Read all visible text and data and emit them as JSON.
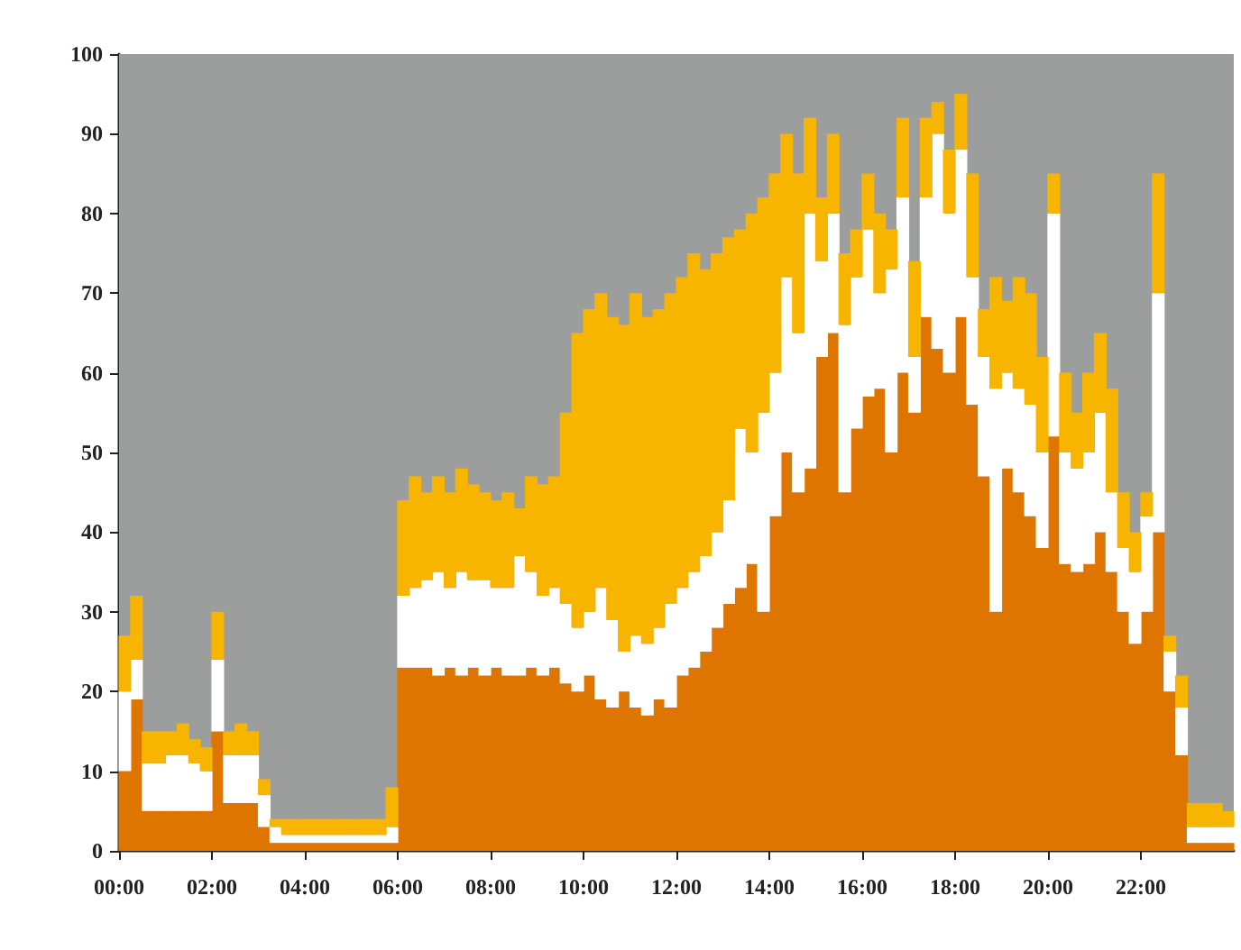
{
  "chart_data": {
    "type": "bar",
    "stacked": true,
    "x": [
      0.125,
      0.375,
      0.625,
      0.875,
      1.125,
      1.375,
      1.625,
      1.875,
      2.125,
      2.375,
      2.625,
      2.875,
      3.125,
      3.375,
      3.625,
      3.875,
      4.125,
      4.375,
      4.625,
      4.875,
      5.125,
      5.375,
      5.625,
      5.875,
      6.125,
      6.375,
      6.625,
      6.875,
      7.125,
      7.375,
      7.625,
      7.875,
      8.125,
      8.375,
      8.625,
      8.875,
      9.125,
      9.375,
      9.625,
      9.875,
      10.125,
      10.375,
      10.625,
      10.875,
      11.125,
      11.375,
      11.625,
      11.875,
      12.125,
      12.375,
      12.625,
      12.875,
      13.125,
      13.375,
      13.625,
      13.875,
      14.125,
      14.375,
      14.625,
      14.875,
      15.125,
      15.375,
      15.625,
      15.875,
      16.125,
      16.375,
      16.625,
      16.875,
      17.125,
      17.375,
      17.625,
      17.875,
      18.125,
      18.375,
      18.625,
      18.875,
      19.125,
      19.375,
      19.625,
      19.875,
      20.125,
      20.375,
      20.625,
      20.875,
      21.125,
      21.375,
      21.625,
      21.875,
      22.125,
      22.375,
      22.625,
      22.875,
      23.125,
      23.375,
      23.625,
      23.875
    ],
    "series": [
      {
        "color": "#dd7500",
        "values": [
          10,
          19,
          5,
          5,
          5,
          5,
          5,
          5,
          15,
          6,
          6,
          6,
          3,
          1,
          1,
          1,
          1,
          1,
          1,
          1,
          1,
          1,
          1,
          1,
          23,
          23,
          23,
          22,
          23,
          22,
          23,
          22,
          23,
          22,
          22,
          23,
          22,
          23,
          21,
          20,
          22,
          19,
          18,
          20,
          18,
          17,
          19,
          18,
          22,
          23,
          25,
          28,
          31,
          33,
          36,
          30,
          42,
          50,
          45,
          48,
          62,
          65,
          45,
          53,
          57,
          58,
          50,
          60,
          55,
          67,
          63,
          60,
          67,
          56,
          47,
          30,
          48,
          45,
          42,
          38,
          52,
          36,
          35,
          36,
          40,
          35,
          30,
          26,
          30,
          40,
          20,
          12,
          1,
          1,
          1,
          1
        ]
      },
      {
        "color": "#ffffff",
        "values": [
          10,
          5,
          6,
          6,
          7,
          7,
          6,
          5,
          9,
          6,
          6,
          6,
          4,
          2,
          1,
          1,
          1,
          1,
          1,
          1,
          1,
          1,
          1,
          2,
          9,
          10,
          11,
          13,
          10,
          13,
          11,
          12,
          10,
          11,
          15,
          12,
          10,
          10,
          10,
          8,
          8,
          14,
          11,
          5,
          9,
          9,
          9,
          13,
          11,
          12,
          12,
          12,
          13,
          20,
          14,
          25,
          18,
          22,
          20,
          32,
          12,
          15,
          21,
          19,
          21,
          12,
          23,
          22,
          7,
          15,
          27,
          20,
          21,
          16,
          15,
          28,
          12,
          13,
          14,
          12,
          28,
          14,
          13,
          14,
          15,
          10,
          8,
          9,
          12,
          30,
          5,
          6,
          2,
          2,
          2,
          2
        ]
      },
      {
        "color": "#f7b500",
        "values": [
          7,
          8,
          4,
          4,
          3,
          4,
          3,
          3,
          6,
          3,
          4,
          3,
          2,
          1,
          2,
          2,
          2,
          2,
          2,
          2,
          2,
          2,
          2,
          5,
          12,
          14,
          11,
          12,
          12,
          13,
          12,
          11,
          11,
          12,
          6,
          12,
          14,
          14,
          24,
          37,
          38,
          37,
          38,
          41,
          43,
          41,
          40,
          39,
          39,
          40,
          36,
          35,
          33,
          25,
          30,
          27,
          25,
          18,
          20,
          12,
          8,
          10,
          9,
          6,
          7,
          10,
          5,
          10,
          12,
          10,
          4,
          8,
          7,
          13,
          6,
          14,
          9,
          14,
          14,
          12,
          5,
          10,
          7,
          10,
          10,
          13,
          7,
          5,
          3,
          15,
          2,
          4,
          3,
          3,
          3,
          2
        ]
      }
    ],
    "xlim": [
      0,
      24
    ],
    "xticks": [
      {
        "value": 0,
        "label": "00:00"
      },
      {
        "value": 2,
        "label": "02:00"
      },
      {
        "value": 4,
        "label": "04:00"
      },
      {
        "value": 6,
        "label": "06:00"
      },
      {
        "value": 8,
        "label": "08:00"
      },
      {
        "value": 10,
        "label": "10:00"
      },
      {
        "value": 12,
        "label": "12:00"
      },
      {
        "value": 14,
        "label": "14:00"
      },
      {
        "value": 16,
        "label": "16:00"
      },
      {
        "value": 18,
        "label": "18:00"
      },
      {
        "value": 20,
        "label": "20:00"
      },
      {
        "value": 22,
        "label": "22:00"
      }
    ],
    "ylim": [
      0,
      100
    ],
    "yticks": [
      0,
      10,
      20,
      30,
      40,
      50,
      60,
      70,
      80,
      90,
      100
    ],
    "bands": [
      {
        "axis": "x",
        "from": 0,
        "to": 24,
        "color": "#9c9e9e"
      }
    ],
    "grid": false
  }
}
